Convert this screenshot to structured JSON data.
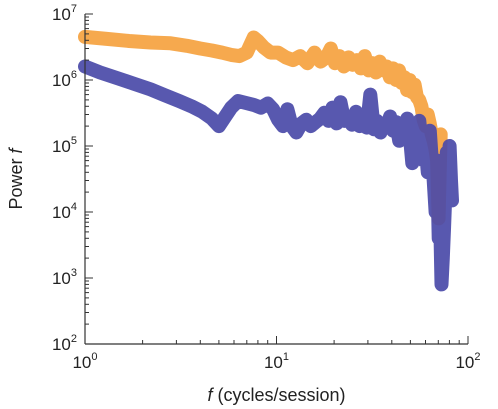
{
  "chart_data": {
    "type": "line",
    "xscale": "log",
    "yscale": "log",
    "xlim": [
      1,
      100
    ],
    "ylim": [
      100,
      10000000
    ],
    "grid": false,
    "xlabel": {
      "italic": "f",
      "rest": " (cycles/session)"
    },
    "ylabel": {
      "rest": "Power ",
      "italic": "f"
    },
    "xticks": [
      {
        "base": "10",
        "exp": "0",
        "value": 1
      },
      {
        "base": "10",
        "exp": "1",
        "value": 10
      },
      {
        "base": "10",
        "exp": "2",
        "value": 100
      }
    ],
    "yticks": [
      {
        "base": "10",
        "exp": "2",
        "value": 100
      },
      {
        "base": "10",
        "exp": "3",
        "value": 1000
      },
      {
        "base": "10",
        "exp": "4",
        "value": 10000
      },
      {
        "base": "10",
        "exp": "5",
        "value": 100000
      },
      {
        "base": "10",
        "exp": "6",
        "value": 1000000
      },
      {
        "base": "10",
        "exp": "7",
        "value": 10000000
      }
    ],
    "series": [
      {
        "color": "#f5a445",
        "opacity": 0.95,
        "x": [
          1.0,
          1.3,
          1.7,
          2.2,
          2.8,
          3.4,
          4.0,
          4.6,
          5.2,
          5.8,
          6.4,
          7.0,
          7.3,
          7.6,
          8.0,
          8.6,
          9.3,
          10.2,
          11.2,
          12.2,
          13.3,
          14.5,
          15.8,
          17.0,
          18.2,
          19.2,
          20.2,
          21.3,
          22.5,
          23.8,
          25.0,
          26.3,
          27.6,
          28.9,
          30.3,
          31.7,
          33.1,
          34.6,
          36.1,
          37.6,
          39.1,
          40.6,
          42.1,
          43.6,
          45.1,
          46.6,
          48.1,
          49.6,
          51.1,
          52.6,
          54.1,
          55.6,
          57.1,
          58.6,
          60.1,
          61.6,
          63.1,
          64.6,
          66.1,
          67.6,
          69.0,
          70.2,
          71.2,
          72.0
        ],
        "y": [
          4500000,
          4200000,
          3900000,
          3700000,
          3600000,
          3300000,
          3000000,
          2800000,
          2600000,
          2400000,
          2300000,
          2600000,
          3400000,
          4400000,
          3900000,
          3100000,
          2600000,
          2600000,
          2200000,
          2000000,
          2300000,
          1800000,
          2600000,
          1900000,
          2200000,
          3000000,
          1800000,
          2300000,
          1600000,
          2200000,
          1700000,
          2000000,
          1500000,
          2300000,
          1400000,
          1800000,
          1300000,
          1900000,
          1400000,
          1600000,
          1100000,
          1500000,
          1000000,
          1400000,
          900000,
          1100000,
          700000,
          1000000,
          650000,
          850000,
          550000,
          500000,
          400000,
          250000,
          200000,
          300000,
          220000,
          150000,
          120000,
          90000,
          60000,
          8000,
          40000,
          150000
        ]
      },
      {
        "color": "#4a4aa8",
        "opacity": 0.92,
        "x": [
          1.0,
          1.2,
          1.5,
          1.8,
          2.2,
          2.6,
          3.1,
          3.6,
          4.1,
          4.6,
          5.0,
          5.4,
          5.8,
          6.3,
          6.9,
          7.6,
          8.3,
          9.0,
          9.6,
          10.2,
          10.8,
          11.4,
          12.0,
          12.7,
          13.5,
          14.3,
          15.1,
          16.0,
          16.9,
          17.8,
          18.7,
          19.6,
          20.6,
          21.6,
          22.6,
          23.7,
          24.8,
          26.0,
          27.2,
          28.4,
          29.6,
          30.9,
          32.2,
          33.5,
          34.9,
          36.3,
          37.7,
          39.2,
          40.7,
          42.2,
          43.7,
          45.2,
          46.7,
          48.2,
          49.7,
          51.2,
          52.7,
          54.2,
          55.7,
          57.2,
          58.7,
          60.2,
          61.7,
          63.2,
          64.7,
          66.2,
          67.7,
          69.0,
          70.3,
          71.5,
          72.7,
          73.9,
          75.0,
          76.2,
          77.5,
          78.8,
          80.2,
          81.5,
          82.5
        ],
        "y": [
          1600000,
          1300000,
          1050000,
          880000,
          720000,
          590000,
          480000,
          400000,
          330000,
          260000,
          200000,
          280000,
          380000,
          480000,
          450000,
          420000,
          380000,
          440000,
          360000,
          250000,
          200000,
          360000,
          200000,
          160000,
          220000,
          250000,
          200000,
          230000,
          260000,
          320000,
          240000,
          380000,
          220000,
          460000,
          240000,
          270000,
          210000,
          330000,
          200000,
          280000,
          190000,
          600000,
          180000,
          240000,
          160000,
          220000,
          200000,
          280000,
          170000,
          230000,
          120000,
          150000,
          200000,
          260000,
          140000,
          55000,
          170000,
          75000,
          240000,
          110000,
          60000,
          90000,
          40000,
          170000,
          60000,
          30000,
          10000,
          60000,
          4000,
          9000,
          800,
          2000,
          6000,
          20000,
          80000,
          40000,
          100000,
          30000,
          15000
        ]
      }
    ]
  }
}
